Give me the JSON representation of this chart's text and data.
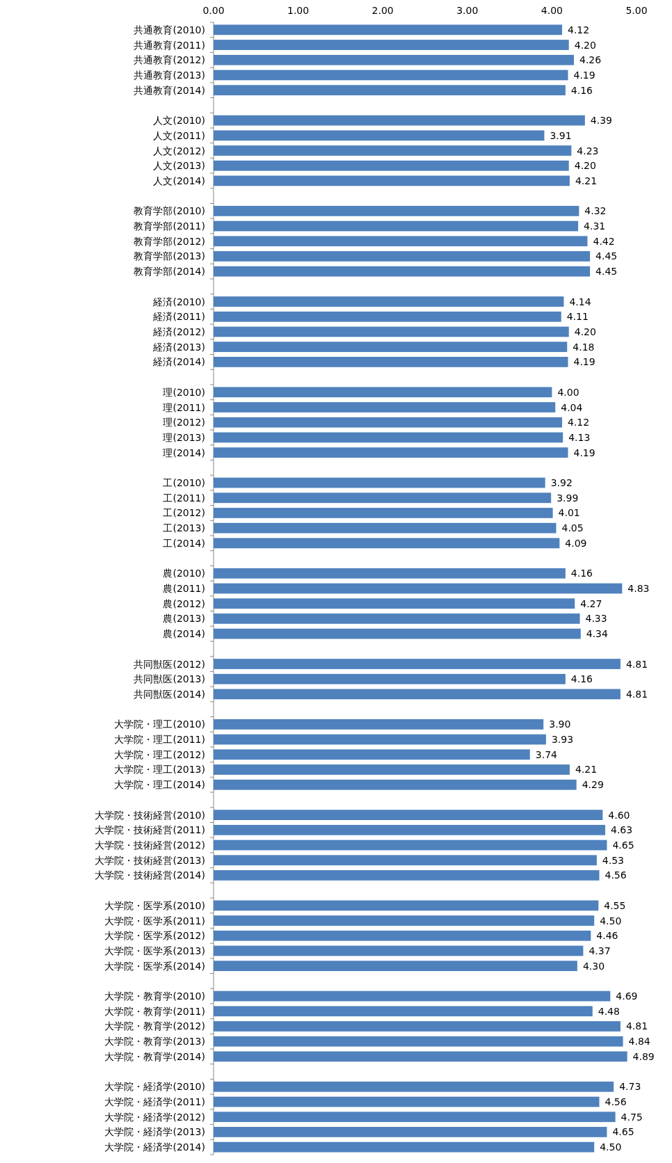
{
  "chart_data": {
    "type": "bar",
    "orientation": "horizontal",
    "categories": [
      "共通教育(2010)",
      "共通教育(2011)",
      "共通教育(2012)",
      "共通教育(2013)",
      "共通教育(2014)",
      null,
      "人文(2010)",
      "人文(2011)",
      "人文(2012)",
      "人文(2013)",
      "人文(2014)",
      null,
      "教育学部(2010)",
      "教育学部(2011)",
      "教育学部(2012)",
      "教育学部(2013)",
      "教育学部(2014)",
      null,
      "経済(2010)",
      "経済(2011)",
      "経済(2012)",
      "経済(2013)",
      "経済(2014)",
      null,
      "理(2010)",
      "理(2011)",
      "理(2012)",
      "理(2013)",
      "理(2014)",
      null,
      "工(2010)",
      "工(2011)",
      "工(2012)",
      "工(2013)",
      "工(2014)",
      null,
      "農(2010)",
      "農(2011)",
      "農(2012)",
      "農(2013)",
      "農(2014)",
      null,
      "共同獣医(2012)",
      "共同獣医(2013)",
      "共同獣医(2014)",
      null,
      "大学院・理工(2010)",
      "大学院・理工(2011)",
      "大学院・理工(2012)",
      "大学院・理工(2013)",
      "大学院・理工(2014)",
      null,
      "大学院・技術経営(2010)",
      "大学院・技術経営(2011)",
      "大学院・技術経営(2012)",
      "大学院・技術経営(2013)",
      "大学院・技術経営(2014)",
      null,
      "大学院・医学系(2010)",
      "大学院・医学系(2011)",
      "大学院・医学系(2012)",
      "大学院・医学系(2013)",
      "大学院・医学系(2014)",
      null,
      "大学院・教育学(2010)",
      "大学院・教育学(2011)",
      "大学院・教育学(2012)",
      "大学院・教育学(2013)",
      "大学院・教育学(2014)",
      null,
      "大学院・経済学(2010)",
      "大学院・経済学(2011)",
      "大学院・経済学(2012)",
      "大学院・経済学(2013)",
      "大学院・経済学(2014)"
    ],
    "series": [
      {
        "color": "#4f81bd",
        "values": [
          4.12,
          4.2,
          4.26,
          4.19,
          4.16,
          null,
          4.39,
          3.91,
          4.23,
          4.2,
          4.21,
          null,
          4.32,
          4.31,
          4.42,
          4.45,
          4.45,
          null,
          4.14,
          4.11,
          4.2,
          4.18,
          4.19,
          null,
          4.0,
          4.04,
          4.12,
          4.13,
          4.19,
          null,
          3.92,
          3.99,
          4.01,
          4.05,
          4.09,
          null,
          4.16,
          4.83,
          4.27,
          4.33,
          4.34,
          null,
          4.81,
          4.16,
          4.81,
          null,
          3.9,
          3.93,
          3.74,
          4.21,
          4.29,
          null,
          4.6,
          4.63,
          4.65,
          4.53,
          4.56,
          null,
          4.55,
          4.5,
          4.46,
          4.37,
          4.3,
          null,
          4.69,
          4.48,
          4.81,
          4.84,
          4.89,
          null,
          4.73,
          4.56,
          4.75,
          4.65,
          4.5
        ],
        "value_labels": [
          "4.12",
          "4.20",
          "4.26",
          "4.19",
          "4.16",
          null,
          "4.39",
          "3.91",
          "4.23",
          "4.20",
          "4.21",
          null,
          "4.32",
          "4.31",
          "4.42",
          "4.45",
          "4.45",
          null,
          "4.14",
          "4.11",
          "4.20",
          "4.18",
          "4.19",
          null,
          "4.00",
          "4.04",
          "4.12",
          "4.13",
          "4.19",
          null,
          "3.92",
          "3.99",
          "4.01",
          "4.05",
          "4.09",
          null,
          "4.16",
          "4.83",
          "4.27",
          "4.33",
          "4.34",
          null,
          "4.81",
          "4.16",
          "4.81",
          null,
          "3.90",
          "3.93",
          "3.74",
          "4.21",
          "4.29",
          null,
          "4.60",
          "4.63",
          "4.65",
          "4.53",
          "4.56",
          null,
          "4.55",
          "4.50",
          "4.46",
          "4.37",
          "4.30",
          null,
          "4.69",
          "4.48",
          "4.81",
          "4.84",
          "4.89",
          null,
          "4.73",
          "4.56",
          "4.75",
          "4.65",
          "4.50"
        ]
      }
    ],
    "xlim": [
      0,
      5
    ],
    "xticks": [
      {
        "value": 0,
        "label": "0.00"
      },
      {
        "value": 1,
        "label": "1.00"
      },
      {
        "value": 2,
        "label": "2.00"
      },
      {
        "value": 3,
        "label": "3.00"
      },
      {
        "value": 4,
        "label": "4.00"
      },
      {
        "value": 5,
        "label": "5.00"
      }
    ]
  }
}
